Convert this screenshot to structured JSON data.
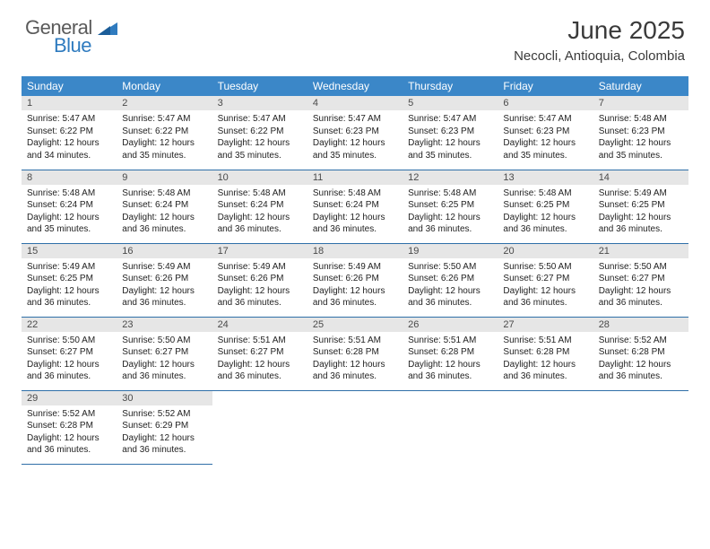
{
  "logo": {
    "text1": "General",
    "text2": "Blue"
  },
  "title": "June 2025",
  "location": "Necocli, Antioquia, Colombia",
  "colors": {
    "header_bg": "#3b87c8",
    "header_text": "#ffffff",
    "daynum_bg": "#e6e6e6",
    "row_border": "#2f6fa8",
    "logo_gray": "#5a5a5a",
    "logo_blue": "#2f7bbf"
  },
  "day_headers": [
    "Sunday",
    "Monday",
    "Tuesday",
    "Wednesday",
    "Thursday",
    "Friday",
    "Saturday"
  ],
  "weeks": [
    [
      {
        "num": "1",
        "sunrise": "5:47 AM",
        "sunset": "6:22 PM",
        "daylight": "12 hours and 34 minutes."
      },
      {
        "num": "2",
        "sunrise": "5:47 AM",
        "sunset": "6:22 PM",
        "daylight": "12 hours and 35 minutes."
      },
      {
        "num": "3",
        "sunrise": "5:47 AM",
        "sunset": "6:22 PM",
        "daylight": "12 hours and 35 minutes."
      },
      {
        "num": "4",
        "sunrise": "5:47 AM",
        "sunset": "6:23 PM",
        "daylight": "12 hours and 35 minutes."
      },
      {
        "num": "5",
        "sunrise": "5:47 AM",
        "sunset": "6:23 PM",
        "daylight": "12 hours and 35 minutes."
      },
      {
        "num": "6",
        "sunrise": "5:47 AM",
        "sunset": "6:23 PM",
        "daylight": "12 hours and 35 minutes."
      },
      {
        "num": "7",
        "sunrise": "5:48 AM",
        "sunset": "6:23 PM",
        "daylight": "12 hours and 35 minutes."
      }
    ],
    [
      {
        "num": "8",
        "sunrise": "5:48 AM",
        "sunset": "6:24 PM",
        "daylight": "12 hours and 35 minutes."
      },
      {
        "num": "9",
        "sunrise": "5:48 AM",
        "sunset": "6:24 PM",
        "daylight": "12 hours and 36 minutes."
      },
      {
        "num": "10",
        "sunrise": "5:48 AM",
        "sunset": "6:24 PM",
        "daylight": "12 hours and 36 minutes."
      },
      {
        "num": "11",
        "sunrise": "5:48 AM",
        "sunset": "6:24 PM",
        "daylight": "12 hours and 36 minutes."
      },
      {
        "num": "12",
        "sunrise": "5:48 AM",
        "sunset": "6:25 PM",
        "daylight": "12 hours and 36 minutes."
      },
      {
        "num": "13",
        "sunrise": "5:48 AM",
        "sunset": "6:25 PM",
        "daylight": "12 hours and 36 minutes."
      },
      {
        "num": "14",
        "sunrise": "5:49 AM",
        "sunset": "6:25 PM",
        "daylight": "12 hours and 36 minutes."
      }
    ],
    [
      {
        "num": "15",
        "sunrise": "5:49 AM",
        "sunset": "6:25 PM",
        "daylight": "12 hours and 36 minutes."
      },
      {
        "num": "16",
        "sunrise": "5:49 AM",
        "sunset": "6:26 PM",
        "daylight": "12 hours and 36 minutes."
      },
      {
        "num": "17",
        "sunrise": "5:49 AM",
        "sunset": "6:26 PM",
        "daylight": "12 hours and 36 minutes."
      },
      {
        "num": "18",
        "sunrise": "5:49 AM",
        "sunset": "6:26 PM",
        "daylight": "12 hours and 36 minutes."
      },
      {
        "num": "19",
        "sunrise": "5:50 AM",
        "sunset": "6:26 PM",
        "daylight": "12 hours and 36 minutes."
      },
      {
        "num": "20",
        "sunrise": "5:50 AM",
        "sunset": "6:27 PM",
        "daylight": "12 hours and 36 minutes."
      },
      {
        "num": "21",
        "sunrise": "5:50 AM",
        "sunset": "6:27 PM",
        "daylight": "12 hours and 36 minutes."
      }
    ],
    [
      {
        "num": "22",
        "sunrise": "5:50 AM",
        "sunset": "6:27 PM",
        "daylight": "12 hours and 36 minutes."
      },
      {
        "num": "23",
        "sunrise": "5:50 AM",
        "sunset": "6:27 PM",
        "daylight": "12 hours and 36 minutes."
      },
      {
        "num": "24",
        "sunrise": "5:51 AM",
        "sunset": "6:27 PM",
        "daylight": "12 hours and 36 minutes."
      },
      {
        "num": "25",
        "sunrise": "5:51 AM",
        "sunset": "6:28 PM",
        "daylight": "12 hours and 36 minutes."
      },
      {
        "num": "26",
        "sunrise": "5:51 AM",
        "sunset": "6:28 PM",
        "daylight": "12 hours and 36 minutes."
      },
      {
        "num": "27",
        "sunrise": "5:51 AM",
        "sunset": "6:28 PM",
        "daylight": "12 hours and 36 minutes."
      },
      {
        "num": "28",
        "sunrise": "5:52 AM",
        "sunset": "6:28 PM",
        "daylight": "12 hours and 36 minutes."
      }
    ],
    [
      {
        "num": "29",
        "sunrise": "5:52 AM",
        "sunset": "6:28 PM",
        "daylight": "12 hours and 36 minutes."
      },
      {
        "num": "30",
        "sunrise": "5:52 AM",
        "sunset": "6:29 PM",
        "daylight": "12 hours and 36 minutes."
      },
      null,
      null,
      null,
      null,
      null
    ]
  ],
  "labels": {
    "sunrise": "Sunrise: ",
    "sunset": "Sunset: ",
    "daylight": "Daylight: "
  }
}
